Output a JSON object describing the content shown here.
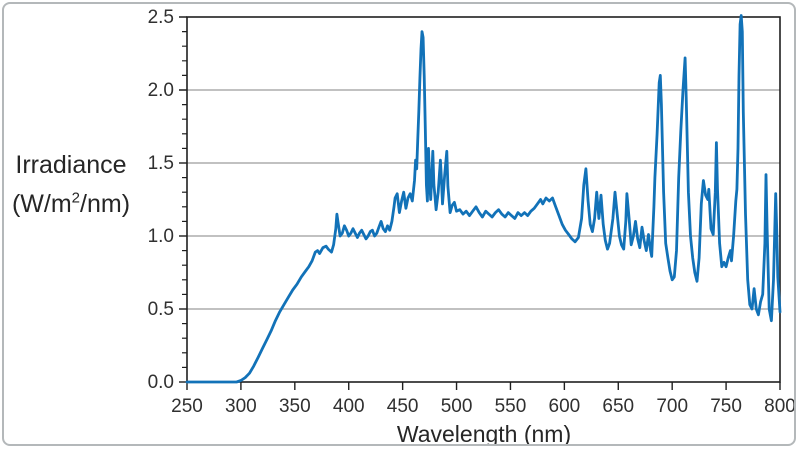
{
  "figure": {
    "y_axis_title_line1": "Irradiance",
    "y_axis_title_line2_prefix": "(W/m",
    "y_axis_title_line2_sup": "2",
    "y_axis_title_line2_suffix": "/nm)",
    "x_axis_title": "Wavelength (nm)"
  },
  "colors": {
    "line": "#1272B8",
    "grid": "#9c9c9c",
    "axis": "#1f1f1f",
    "text": "#303030",
    "card_border": "#b4b8ba"
  },
  "chart_data": {
    "type": "line",
    "title": "",
    "xlabel": "Wavelength (nm)",
    "ylabel": "Irradiance (W/m2/nm)",
    "xlim": [
      250,
      800
    ],
    "ylim": [
      0,
      2.5
    ],
    "x_tick_values": [
      250,
      300,
      350,
      400,
      450,
      500,
      550,
      600,
      650,
      700,
      750,
      800
    ],
    "x_tick_labels": [
      "250",
      "300",
      "350",
      "400",
      "450",
      "500",
      "550",
      "600",
      "650",
      "700",
      "750",
      "800"
    ],
    "y_tick_values": [
      0,
      0.5,
      1.0,
      1.5,
      2.0,
      2.5
    ],
    "y_tick_labels": [
      "0.0",
      "0.5",
      "1.0",
      "1.5",
      "2.0",
      "2.5"
    ],
    "y_minor_step": 0.1,
    "grid": "horizontal-major",
    "legend": "none",
    "series": [
      {
        "name": "Irradiance",
        "x": [
          250,
          258,
          266,
          274,
          282,
          290,
          296,
          300,
          304,
          308,
          312,
          316,
          320,
          324,
          328,
          332,
          336,
          340,
          344,
          348,
          352,
          356,
          360,
          363,
          366,
          369,
          371,
          373,
          376,
          379,
          381,
          384,
          386,
          388,
          389,
          390,
          392,
          394,
          396,
          398,
          400,
          402,
          404,
          406,
          408,
          410,
          412,
          414,
          416,
          418,
          420,
          422,
          424,
          426,
          428,
          430,
          432,
          434,
          436,
          438,
          440,
          442,
          443,
          445,
          447,
          449,
          451,
          453,
          455,
          457,
          459,
          461,
          462,
          463,
          464,
          465,
          466,
          467,
          468,
          469,
          470,
          471,
          472,
          473,
          474,
          475,
          476,
          477,
          478,
          479,
          480,
          481,
          483,
          485,
          486,
          487,
          489,
          491,
          492,
          494,
          496,
          498,
          500,
          503,
          506,
          509,
          512,
          515,
          518,
          521,
          524,
          527,
          530,
          533,
          536,
          539,
          542,
          545,
          548,
          551,
          554,
          557,
          560,
          563,
          566,
          569,
          572,
          575,
          578,
          580,
          583,
          586,
          589,
          592,
          595,
          598,
          601,
          604,
          607,
          610,
          613,
          616,
          618,
          620,
          622,
          624,
          626,
          628,
          630,
          632,
          634,
          636,
          638,
          640,
          642,
          645,
          647,
          649,
          651,
          653,
          655,
          657,
          658,
          660,
          662,
          664,
          666,
          668,
          670,
          672,
          674,
          676,
          678,
          680,
          681,
          683,
          684,
          686,
          688,
          689,
          690,
          692,
          694,
          696,
          698,
          700,
          702,
          704,
          706,
          708,
          710,
          712,
          713,
          715,
          717,
          719,
          721,
          723,
          725,
          727,
          729,
          731,
          733,
          734,
          736,
          738,
          740,
          741,
          742,
          744,
          746,
          748,
          750,
          752,
          754,
          755,
          757,
          759,
          760,
          761,
          762,
          763,
          764,
          765,
          766,
          768,
          770,
          772,
          774,
          776,
          778,
          780,
          782,
          784,
          786,
          787,
          788,
          790,
          792,
          794,
          796,
          797,
          798,
          800
        ],
        "y": [
          0,
          0,
          0,
          0,
          0,
          0,
          0,
          0.01,
          0.03,
          0.06,
          0.11,
          0.17,
          0.23,
          0.29,
          0.35,
          0.42,
          0.48,
          0.53,
          0.58,
          0.63,
          0.67,
          0.72,
          0.76,
          0.79,
          0.83,
          0.89,
          0.9,
          0.88,
          0.92,
          0.93,
          0.91,
          0.89,
          0.94,
          1.05,
          1.15,
          1.1,
          1.0,
          1.02,
          1.07,
          1.04,
          1.0,
          1.02,
          1.05,
          1.02,
          0.99,
          1.02,
          1.04,
          1.01,
          0.98,
          1.0,
          1.03,
          1.04,
          1.0,
          1.02,
          1.06,
          1.1,
          1.05,
          1.03,
          1.07,
          1.04,
          1.1,
          1.2,
          1.26,
          1.29,
          1.16,
          1.24,
          1.3,
          1.19,
          1.26,
          1.29,
          1.24,
          1.38,
          1.52,
          1.46,
          1.65,
          1.85,
          2.08,
          2.28,
          2.4,
          2.36,
          2.1,
          1.74,
          1.35,
          1.24,
          1.6,
          1.38,
          1.25,
          1.4,
          1.58,
          1.35,
          1.27,
          1.18,
          1.3,
          1.52,
          1.38,
          1.22,
          1.42,
          1.58,
          1.34,
          1.16,
          1.21,
          1.23,
          1.17,
          1.18,
          1.15,
          1.17,
          1.14,
          1.17,
          1.2,
          1.16,
          1.13,
          1.17,
          1.15,
          1.13,
          1.16,
          1.18,
          1.15,
          1.13,
          1.16,
          1.14,
          1.12,
          1.16,
          1.14,
          1.16,
          1.14,
          1.17,
          1.19,
          1.22,
          1.25,
          1.22,
          1.26,
          1.24,
          1.26,
          1.2,
          1.14,
          1.08,
          1.04,
          1.01,
          0.98,
          0.96,
          0.99,
          1.12,
          1.35,
          1.46,
          1.24,
          1.08,
          1.03,
          1.12,
          1.3,
          1.12,
          1.28,
          1.08,
          0.97,
          0.91,
          0.95,
          1.12,
          1.3,
          1.15,
          1.0,
          0.94,
          0.91,
          1.1,
          1.29,
          1.12,
          0.94,
          1.0,
          1.1,
          0.98,
          0.92,
          1.06,
          0.97,
          0.9,
          1.01,
          0.9,
          0.86,
          1.2,
          1.4,
          1.7,
          2.05,
          2.1,
          1.9,
          1.3,
          0.95,
          0.85,
          0.76,
          0.7,
          0.72,
          0.9,
          1.4,
          1.72,
          2.0,
          2.22,
          1.95,
          1.3,
          1.0,
          0.85,
          0.75,
          0.69,
          0.85,
          1.22,
          1.38,
          1.28,
          1.25,
          1.32,
          1.05,
          1.01,
          1.3,
          1.64,
          1.32,
          0.95,
          0.79,
          0.82,
          0.79,
          0.85,
          0.9,
          0.83,
          1.0,
          1.24,
          1.32,
          1.6,
          2.1,
          2.45,
          2.51,
          2.4,
          1.85,
          1.15,
          0.7,
          0.53,
          0.5,
          0.64,
          0.5,
          0.46,
          0.55,
          0.6,
          0.95,
          1.42,
          1.05,
          0.5,
          0.42,
          0.7,
          1.29,
          1.02,
          0.72,
          0.48
        ]
      }
    ]
  }
}
